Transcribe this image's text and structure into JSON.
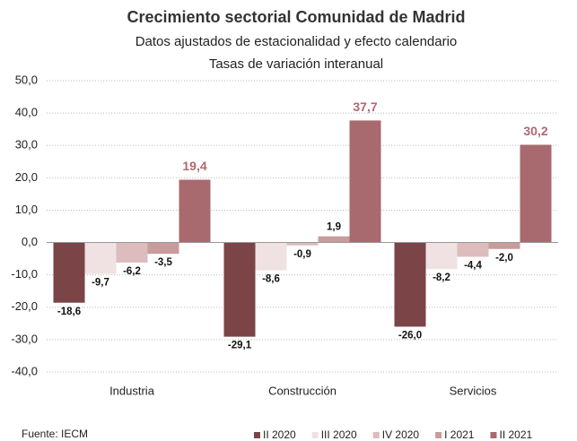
{
  "chart_data": {
    "type": "bar",
    "title": "Crecimiento sectorial Comunidad de Madrid",
    "subtitle": [
      "Datos ajustados de estacionalidad y efecto calendario",
      "Tasas de variación interanual"
    ],
    "source": "Fuente: IECM",
    "categories": [
      "Industria",
      "Construcción",
      "Servicios"
    ],
    "series": [
      {
        "name": "II 2020",
        "color": "#7b4446",
        "values": [
          -18.6,
          -29.1,
          -26.0
        ],
        "value_labels": [
          "-18,6",
          "-29,1",
          "-26,0"
        ]
      },
      {
        "name": "III 2020",
        "color": "#f0e2e2",
        "values": [
          -9.7,
          -8.6,
          -8.2
        ],
        "value_labels": [
          "-9,7",
          "-8,6",
          "-8,2"
        ]
      },
      {
        "name": "IV 2020",
        "color": "#dcbcbc",
        "values": [
          -6.2,
          -0.9,
          -4.4
        ],
        "value_labels": [
          "-6,2",
          "-0,9",
          "-4,4"
        ]
      },
      {
        "name": "I 2021",
        "color": "#c89c9c",
        "values": [
          -3.5,
          1.9,
          -2.0
        ],
        "value_labels": [
          "-3,5",
          "1,9",
          "-2,0"
        ]
      },
      {
        "name": "II 2021",
        "color": "#a86a6e",
        "values": [
          19.4,
          37.7,
          30.2
        ],
        "value_labels": [
          "19,4",
          "37,7",
          "30,2"
        ]
      }
    ],
    "ylim": [
      -40,
      50
    ],
    "yticks": [
      {
        "value": -40,
        "label": "-40,0"
      },
      {
        "value": -30,
        "label": "-30,0"
      },
      {
        "value": -20,
        "label": "-20,0"
      },
      {
        "value": -10,
        "label": "-10,0"
      },
      {
        "value": 0,
        "label": "0,0"
      },
      {
        "value": 10,
        "label": "10,0"
      },
      {
        "value": 20,
        "label": "20,0"
      },
      {
        "value": 30,
        "label": "30,0"
      },
      {
        "value": 40,
        "label": "40,0"
      },
      {
        "value": 50,
        "label": "50,0"
      }
    ],
    "grid": true
  }
}
